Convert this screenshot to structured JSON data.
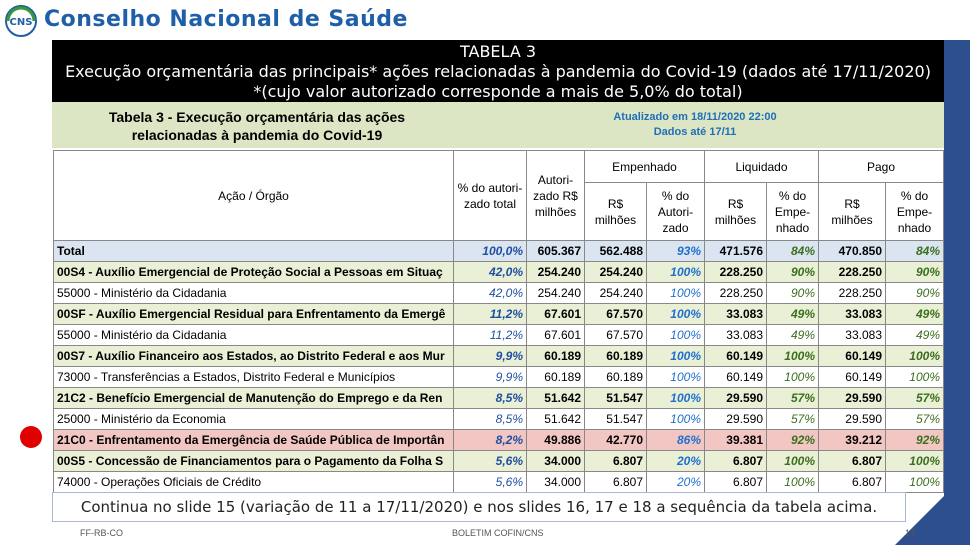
{
  "org": {
    "title": "Conselho Nacional de Saúde",
    "logo_text": "CNS"
  },
  "banner": {
    "line1": "TABELA 3",
    "line2": "Execução orçamentária das principais* ações relacionadas à pandemia do Covid-19 (dados até 17/11/2020)",
    "line3": "*(cujo valor autorizado corresponde a mais de 5,0% do total)"
  },
  "subheader": {
    "title": "Tabela 3 - Execução orçamentária das ações relacionadas à pandemia do Covid-19",
    "updated": "Atualizado em 18/11/2020 22:00",
    "data_until": "Dados até 17/11"
  },
  "table": {
    "headers": {
      "acao": "Ação / Órgão",
      "pct_total": "% do autori- zado total",
      "autorizado": "Autori- zado R$ milhões",
      "empenhado": "Empenhado",
      "liquidado": "Liquidado",
      "pago": "Pago",
      "rs": "R$ milhões",
      "pct_autorizado": "% do Autori- zado",
      "pct_empenhado": "% do Empe- nhado"
    },
    "rows": [
      {
        "type": "tot",
        "acao": "Total",
        "pct": "100,0%",
        "aut": "605.367",
        "emp": "562.488",
        "emp_pct": "93%",
        "liq": "471.576",
        "liq_pct": "84%",
        "pago": "470.850",
        "pago_pct": "84%"
      },
      {
        "type": "grp",
        "acao": "00S4 - Auxílio Emergencial de Proteção Social a Pessoas em Situaç",
        "pct": "42,0%",
        "aut": "254.240",
        "emp": "254.240",
        "emp_pct": "100%",
        "liq": "228.250",
        "liq_pct": "90%",
        "pago": "228.250",
        "pago_pct": "90%"
      },
      {
        "type": "sub",
        "acao": "55000 - Ministério da Cidadania",
        "pct": "42,0%",
        "aut": "254.240",
        "emp": "254.240",
        "emp_pct": "100%",
        "liq": "228.250",
        "liq_pct": "90%",
        "pago": "228.250",
        "pago_pct": "90%"
      },
      {
        "type": "grp",
        "acao": "00SF - Auxílio Emergencial Residual para Enfrentamento da Emergê",
        "pct": "11,2%",
        "aut": "67.601",
        "emp": "67.570",
        "emp_pct": "100%",
        "liq": "33.083",
        "liq_pct": "49%",
        "pago": "33.083",
        "pago_pct": "49%"
      },
      {
        "type": "sub",
        "acao": "55000 - Ministério da Cidadania",
        "pct": "11,2%",
        "aut": "67.601",
        "emp": "67.570",
        "emp_pct": "100%",
        "liq": "33.083",
        "liq_pct": "49%",
        "pago": "33.083",
        "pago_pct": "49%"
      },
      {
        "type": "grp",
        "acao": "00S7 - Auxílio Financeiro aos Estados, ao Distrito Federal e aos Mur",
        "pct": "9,9%",
        "aut": "60.189",
        "emp": "60.189",
        "emp_pct": "100%",
        "liq": "60.149",
        "liq_pct": "100%",
        "pago": "60.149",
        "pago_pct": "100%"
      },
      {
        "type": "sub",
        "acao": "73000 - Transferências a Estados, Distrito Federal e Municípios",
        "pct": "9,9%",
        "aut": "60.189",
        "emp": "60.189",
        "emp_pct": "100%",
        "liq": "60.149",
        "liq_pct": "100%",
        "pago": "60.149",
        "pago_pct": "100%"
      },
      {
        "type": "grp",
        "acao": "21C2 - Benefício Emergencial de Manutenção do Emprego e da Ren",
        "pct": "8,5%",
        "aut": "51.642",
        "emp": "51.547",
        "emp_pct": "100%",
        "liq": "29.590",
        "liq_pct": "57%",
        "pago": "29.590",
        "pago_pct": "57%"
      },
      {
        "type": "sub",
        "acao": "25000 - Ministério da Economia",
        "pct": "8,5%",
        "aut": "51.642",
        "emp": "51.547",
        "emp_pct": "100%",
        "liq": "29.590",
        "liq_pct": "57%",
        "pago": "29.590",
        "pago_pct": "57%"
      },
      {
        "type": "hl",
        "acao": "21C0 - Enfrentamento da Emergência de Saúde Pública de Importân",
        "pct": "8,2%",
        "aut": "49.886",
        "emp": "42.770",
        "emp_pct": "86%",
        "liq": "39.381",
        "liq_pct": "92%",
        "pago": "39.212",
        "pago_pct": "92%"
      },
      {
        "type": "grp",
        "acao": "00S5 - Concessão de Financiamentos para o Pagamento da Folha S",
        "pct": "5,6%",
        "aut": "34.000",
        "emp": "6.807",
        "emp_pct": "20%",
        "liq": "6.807",
        "liq_pct": "100%",
        "pago": "6.807",
        "pago_pct": "100%"
      },
      {
        "type": "sub",
        "acao": "74000 - Operações Oficiais de Crédito",
        "pct": "5,6%",
        "aut": "34.000",
        "emp": "6.807",
        "emp_pct": "20%",
        "liq": "6.807",
        "liq_pct": "100%",
        "pago": "6.807",
        "pago_pct": "100%"
      }
    ]
  },
  "continuation": "Continua no slide 15 (variação de 11 a 17/11/2020) e nos slides 16, 17 e 18 a sequência da tabela acima.",
  "footer": {
    "left": "FF-RB-CO",
    "center": "BOLETIM COFIN/CNS",
    "page": "14"
  },
  "colors": {
    "brand": "#1f5fa8",
    "banner": "#000000",
    "subheader": "#dce5c4",
    "highlight": "#f2c7c3",
    "marker": "#e00000"
  }
}
